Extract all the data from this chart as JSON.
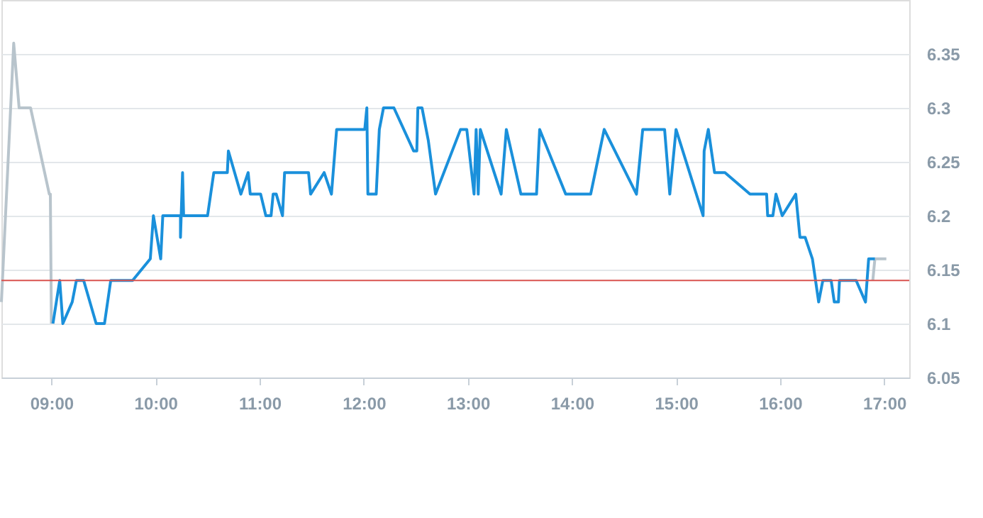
{
  "chart_data": {
    "type": "line",
    "xlim": [
      8.52,
      17.24
    ],
    "ylim": [
      6.05,
      6.4
    ],
    "xticks": [
      {
        "value": 9,
        "label": "09:00"
      },
      {
        "value": 10,
        "label": "10:00"
      },
      {
        "value": 11,
        "label": "11:00"
      },
      {
        "value": 12,
        "label": "12:00"
      },
      {
        "value": 13,
        "label": "13:00"
      },
      {
        "value": 14,
        "label": "14:00"
      },
      {
        "value": 15,
        "label": "15:00"
      },
      {
        "value": 16,
        "label": "16:00"
      },
      {
        "value": 17,
        "label": "17:00"
      }
    ],
    "yticks": [
      6.05,
      6.1,
      6.15,
      6.2,
      6.25,
      6.3,
      6.35
    ],
    "grid": "y",
    "marker": "none",
    "line_style": "solid",
    "ref_lines": [
      {
        "axis": "y",
        "value": 6.14,
        "color": "#d9534f"
      }
    ],
    "series": [
      {
        "color": "#b8c4cc",
        "x": [
          8.52,
          8.638,
          8.69,
          8.8,
          8.98,
          8.99,
          9.0,
          16.5,
          16.89,
          16.91,
          17.02
        ],
        "values": [
          6.12,
          6.36,
          6.3,
          6.3,
          6.22,
          6.22,
          6.1,
          null,
          6.14,
          6.16,
          6.16
        ]
      },
      {
        "color": "#1a90db",
        "x": [
          9.015,
          9.08,
          9.11,
          9.2,
          9.24,
          9.31,
          9.43,
          9.51,
          9.57,
          9.78,
          9.95,
          9.98,
          10.05,
          10.07,
          10.24,
          10.24,
          10.26,
          10.27,
          10.5,
          10.56,
          10.69,
          10.7,
          10.82,
          10.89,
          10.91,
          11.01,
          11.06,
          11.11,
          11.13,
          11.16,
          11.22,
          11.24,
          11.47,
          11.49,
          11.62,
          11.69,
          11.74,
          12.01,
          12.03,
          12.04,
          12.12,
          12.15,
          12.19,
          12.29,
          12.48,
          12.51,
          12.52,
          12.56,
          12.62,
          12.69,
          12.93,
          12.99,
          13.06,
          13.08,
          13.1,
          13.12,
          13.32,
          13.37,
          13.51,
          13.66,
          13.69,
          13.94,
          14.18,
          14.31,
          14.62,
          14.68,
          14.89,
          14.94,
          15.0,
          15.26,
          15.27,
          15.31,
          15.37,
          15.47,
          15.71,
          15.87,
          15.88,
          15.93,
          15.96,
          16.02,
          16.15,
          16.17,
          16.19,
          16.24,
          16.31,
          16.37,
          16.41,
          16.49,
          16.52,
          16.56,
          16.57,
          16.73,
          16.82,
          16.85,
          16.91
        ],
        "values": [
          6.1,
          6.14,
          6.1,
          6.12,
          6.14,
          6.14,
          6.1,
          6.1,
          6.14,
          6.14,
          6.16,
          6.2,
          6.16,
          6.2,
          6.2,
          6.18,
          6.24,
          6.2,
          6.2,
          6.24,
          6.24,
          6.26,
          6.22,
          6.24,
          6.22,
          6.22,
          6.2,
          6.2,
          6.22,
          6.22,
          6.2,
          6.24,
          6.24,
          6.22,
          6.24,
          6.22,
          6.28,
          6.28,
          6.3,
          6.22,
          6.22,
          6.28,
          6.3,
          6.3,
          6.26,
          6.26,
          6.3,
          6.3,
          6.27,
          6.22,
          6.28,
          6.28,
          6.22,
          6.28,
          6.22,
          6.28,
          6.22,
          6.28,
          6.22,
          6.22,
          6.28,
          6.22,
          6.22,
          6.28,
          6.22,
          6.28,
          6.28,
          6.22,
          6.28,
          6.2,
          6.26,
          6.28,
          6.24,
          6.24,
          6.22,
          6.22,
          6.2,
          6.2,
          6.22,
          6.2,
          6.22,
          6.2,
          6.18,
          6.18,
          6.16,
          6.12,
          6.14,
          6.14,
          6.12,
          6.12,
          6.14,
          6.14,
          6.12,
          6.16,
          6.16
        ]
      }
    ]
  }
}
